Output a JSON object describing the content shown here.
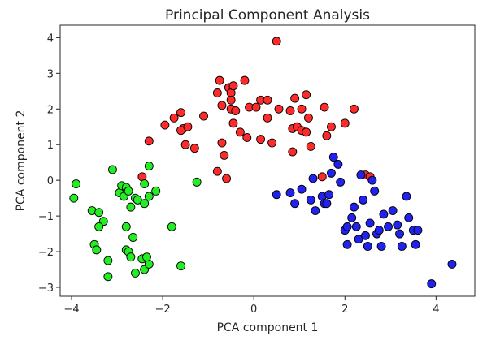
{
  "chart_data": {
    "type": "scatter",
    "title": "Principal Component Analysis",
    "xlabel": "PCA component 1",
    "ylabel": "PCA component 2",
    "xlim": [
      -4.25,
      4.85
    ],
    "ylim": [
      -3.25,
      4.35
    ],
    "xticks": [
      -4,
      -2,
      0,
      2,
      4
    ],
    "yticks": [
      -3,
      -2,
      -1,
      0,
      1,
      2,
      3,
      4
    ],
    "grid": false,
    "legend": "none",
    "marker": "circle with black edge",
    "series": [
      {
        "color": "#ff2a2a",
        "points": [
          [
            -1.75,
            1.75
          ],
          [
            -1.6,
            1.9
          ],
          [
            -1.55,
            1.45
          ],
          [
            -1.6,
            1.4
          ],
          [
            -1.5,
            1.0
          ],
          [
            -1.45,
            1.5
          ],
          [
            -2.3,
            1.1
          ],
          [
            -2.45,
            0.1
          ],
          [
            -1.1,
            1.8
          ],
          [
            -1.3,
            0.9
          ],
          [
            -0.8,
            2.45
          ],
          [
            -0.75,
            2.8
          ],
          [
            -0.7,
            2.1
          ],
          [
            -0.55,
            2.6
          ],
          [
            -0.5,
            2.45
          ],
          [
            -0.5,
            2.25
          ],
          [
            -0.45,
            2.65
          ],
          [
            -0.5,
            2.0
          ],
          [
            -0.4,
            1.95
          ],
          [
            -0.45,
            1.6
          ],
          [
            -0.7,
            1.05
          ],
          [
            -0.65,
            0.7
          ],
          [
            -0.6,
            0.05
          ],
          [
            -0.8,
            0.25
          ],
          [
            -0.3,
            1.35
          ],
          [
            -0.2,
            2.8
          ],
          [
            -0.1,
            2.05
          ],
          [
            0.05,
            2.05
          ],
          [
            0.15,
            2.25
          ],
          [
            0.3,
            2.25
          ],
          [
            0.3,
            1.75
          ],
          [
            0.5,
            3.9
          ],
          [
            0.55,
            2.0
          ],
          [
            -0.15,
            1.2
          ],
          [
            0.15,
            1.15
          ],
          [
            0.4,
            1.05
          ],
          [
            0.8,
            1.95
          ],
          [
            0.85,
            1.45
          ],
          [
            0.9,
            2.3
          ],
          [
            0.95,
            1.5
          ],
          [
            1.05,
            1.4
          ],
          [
            1.15,
            1.35
          ],
          [
            1.05,
            2.0
          ],
          [
            1.15,
            2.4
          ],
          [
            1.2,
            1.75
          ],
          [
            0.85,
            0.8
          ],
          [
            1.25,
            0.95
          ],
          [
            1.6,
            1.25
          ],
          [
            1.55,
            2.05
          ],
          [
            1.7,
            1.5
          ],
          [
            2.0,
            1.6
          ],
          [
            2.45,
            0.15
          ],
          [
            2.55,
            0.1
          ],
          [
            1.5,
            0.1
          ],
          [
            2.2,
            2.0
          ],
          [
            -1.95,
            1.55
          ]
        ]
      },
      {
        "color": "#22ee22",
        "points": [
          [
            -3.9,
            -0.1
          ],
          [
            -3.95,
            -0.5
          ],
          [
            -3.55,
            -0.85
          ],
          [
            -3.4,
            -0.9
          ],
          [
            -3.3,
            -1.15
          ],
          [
            -3.4,
            -1.3
          ],
          [
            -3.5,
            -1.8
          ],
          [
            -3.45,
            -1.95
          ],
          [
            -3.2,
            -2.25
          ],
          [
            -3.2,
            -2.7
          ],
          [
            -3.1,
            0.3
          ],
          [
            -2.95,
            -0.35
          ],
          [
            -2.9,
            -0.15
          ],
          [
            -2.85,
            -0.45
          ],
          [
            -2.8,
            -0.2
          ],
          [
            -2.75,
            -0.3
          ],
          [
            -2.6,
            -0.5
          ],
          [
            -2.55,
            -0.55
          ],
          [
            -2.7,
            -0.75
          ],
          [
            -2.4,
            -0.65
          ],
          [
            -2.3,
            -0.45
          ],
          [
            -2.15,
            -0.3
          ],
          [
            -2.4,
            -0.1
          ],
          [
            -2.3,
            0.4
          ],
          [
            -2.8,
            -1.3
          ],
          [
            -2.8,
            -1.95
          ],
          [
            -2.75,
            -2.0
          ],
          [
            -2.65,
            -1.6
          ],
          [
            -2.7,
            -2.15
          ],
          [
            -2.6,
            -2.6
          ],
          [
            -2.4,
            -2.5
          ],
          [
            -2.45,
            -2.2
          ],
          [
            -2.3,
            -2.35
          ],
          [
            -2.35,
            -2.15
          ],
          [
            -1.8,
            -1.3
          ],
          [
            -1.6,
            -2.4
          ],
          [
            -1.25,
            -0.05
          ]
        ]
      },
      {
        "color": "#2222ee",
        "points": [
          [
            0.5,
            -0.4
          ],
          [
            0.8,
            -0.35
          ],
          [
            0.9,
            -0.65
          ],
          [
            1.05,
            -0.25
          ],
          [
            1.25,
            -0.55
          ],
          [
            1.3,
            0.05
          ],
          [
            1.35,
            -0.85
          ],
          [
            1.5,
            -0.45
          ],
          [
            1.55,
            -0.65
          ],
          [
            1.6,
            -0.65
          ],
          [
            1.65,
            -0.4
          ],
          [
            1.7,
            0.2
          ],
          [
            1.75,
            0.65
          ],
          [
            1.85,
            0.45
          ],
          [
            1.9,
            -0.05
          ],
          [
            2.0,
            -1.4
          ],
          [
            2.05,
            -1.3
          ],
          [
            2.15,
            -1.05
          ],
          [
            2.2,
            -0.75
          ],
          [
            2.25,
            -1.3
          ],
          [
            2.3,
            -1.65
          ],
          [
            2.35,
            0.15
          ],
          [
            2.4,
            -0.55
          ],
          [
            2.45,
            -1.55
          ],
          [
            2.5,
            -1.85
          ],
          [
            2.55,
            -1.2
          ],
          [
            2.6,
            0.0
          ],
          [
            2.7,
            -1.5
          ],
          [
            2.75,
            -1.4
          ],
          [
            2.8,
            -1.85
          ],
          [
            2.85,
            -0.95
          ],
          [
            2.95,
            -1.3
          ],
          [
            3.05,
            -0.85
          ],
          [
            3.15,
            -1.25
          ],
          [
            3.2,
            -1.5
          ],
          [
            3.25,
            -1.85
          ],
          [
            3.35,
            -0.45
          ],
          [
            3.4,
            -1.05
          ],
          [
            3.5,
            -1.4
          ],
          [
            3.55,
            -1.8
          ],
          [
            3.6,
            -1.4
          ],
          [
            3.9,
            -2.9
          ],
          [
            4.35,
            -2.35
          ],
          [
            2.65,
            -0.3
          ],
          [
            2.05,
            -1.8
          ]
        ]
      }
    ]
  }
}
